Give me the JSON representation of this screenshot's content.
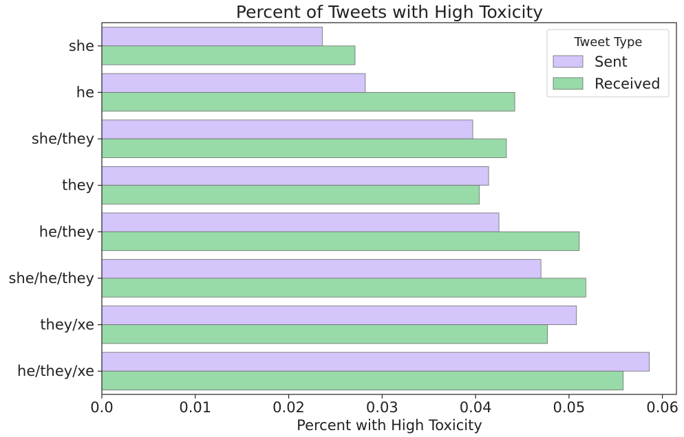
{
  "chart_data": {
    "type": "bar",
    "orientation": "horizontal",
    "title": "Percent of Tweets with High Toxicity",
    "xlabel": "Percent with High Toxicity",
    "ylabel": "",
    "xlim": [
      0,
      0.0615
    ],
    "x_ticks": [
      "0.0",
      "0.01",
      "0.02",
      "0.03",
      "0.04",
      "0.05",
      "0.06"
    ],
    "x_tick_values": [
      0,
      0.01,
      0.02,
      0.03,
      0.04,
      0.05,
      0.06
    ],
    "categories": [
      "she",
      "he",
      "she/they",
      "they",
      "he/they",
      "she/he/they",
      "they/xe",
      "he/they/xe"
    ],
    "series": [
      {
        "name": "Sent",
        "color": "#d4c5fa",
        "values": [
          0.0236,
          0.0282,
          0.0397,
          0.0414,
          0.0425,
          0.047,
          0.0508,
          0.0586
        ]
      },
      {
        "name": "Received",
        "color": "#98dba9",
        "values": [
          0.0271,
          0.0442,
          0.0433,
          0.0404,
          0.0511,
          0.0518,
          0.0477,
          0.0558
        ]
      }
    ],
    "legend": {
      "title": "Tweet Type",
      "position": "top-right"
    },
    "grid": false
  }
}
